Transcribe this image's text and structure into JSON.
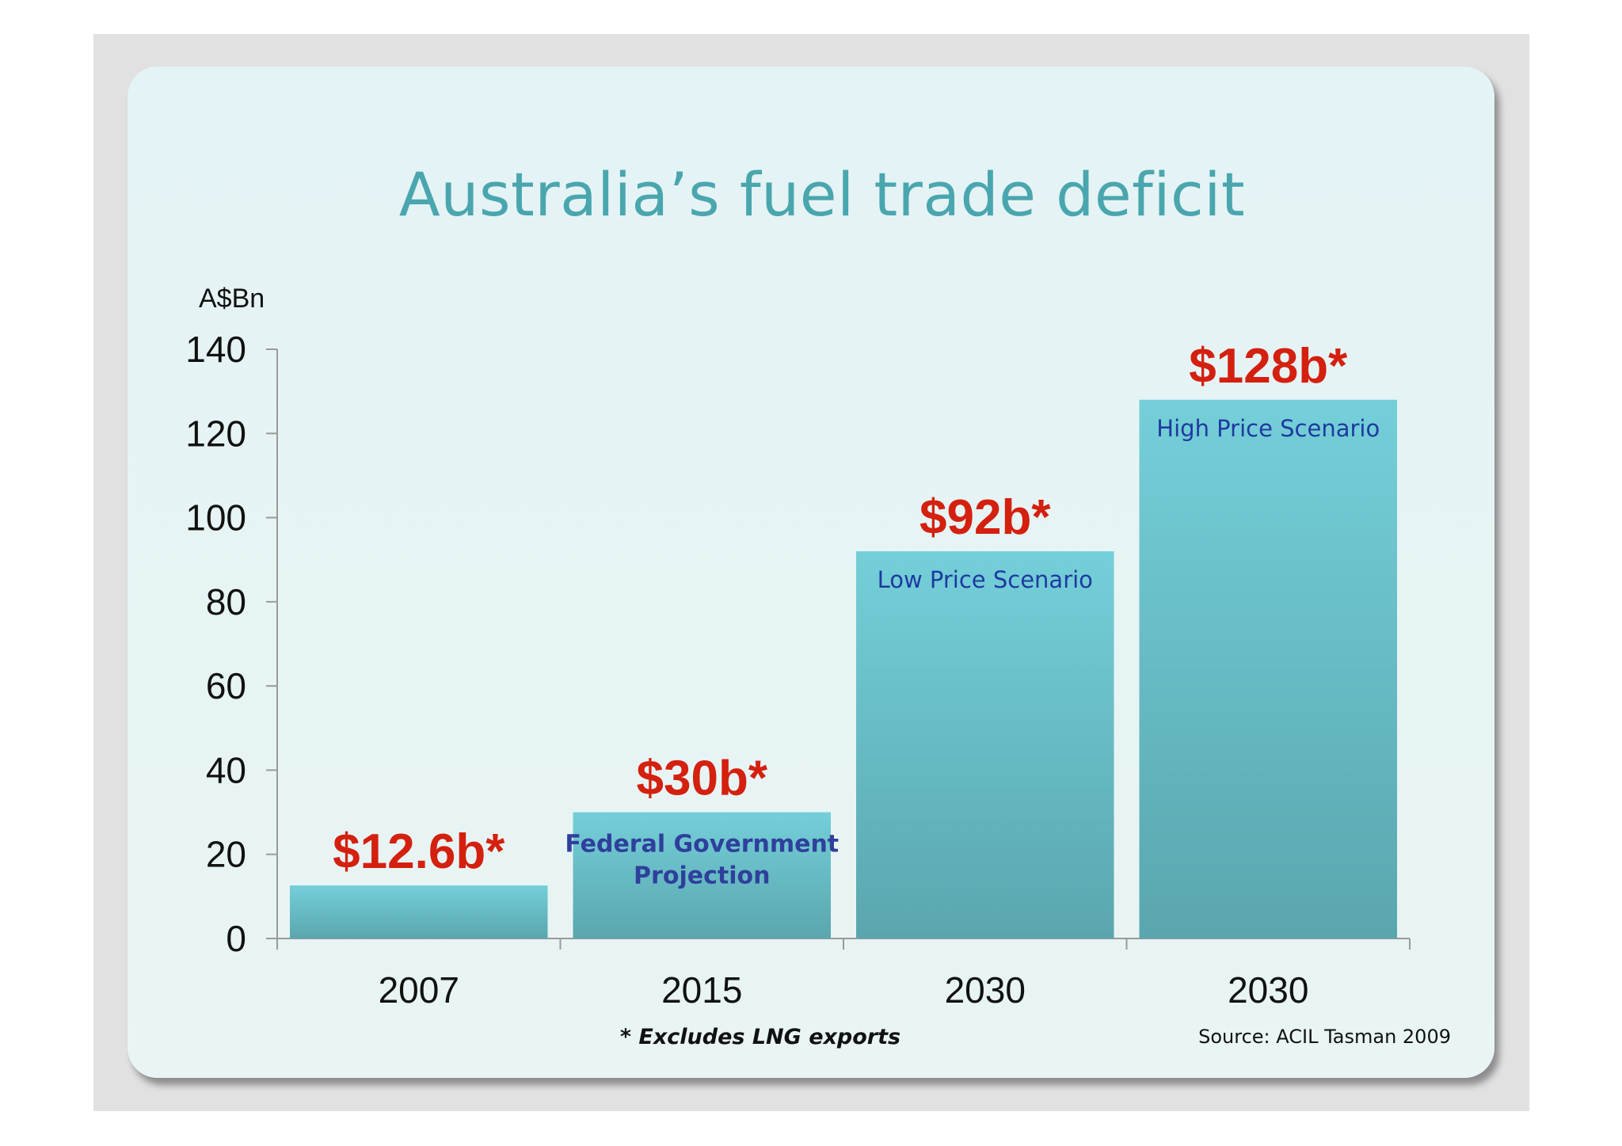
{
  "chart_data": {
    "type": "bar",
    "title": "Australia’s fuel trade deficit",
    "ylabel": "A$Bn",
    "ylim": [
      0,
      140
    ],
    "yticks": [
      0,
      20,
      40,
      60,
      80,
      100,
      120,
      140
    ],
    "categories": [
      "2007",
      "2015",
      "2030",
      "2030"
    ],
    "values": [
      12.6,
      30,
      92,
      128
    ],
    "data_labels": [
      "$12.6b*",
      "$30b*",
      "$92b*",
      "$128b*"
    ],
    "bar_annotations": [
      "",
      "Federal Government Projection",
      "Low Price Scenario",
      "High Price Scenario"
    ],
    "footnote": "* Excludes LNG exports",
    "source": "Source: ACIL Tasman 2009",
    "colors": {
      "bar_top": "#74cfd9",
      "bar_bottom": "#5aa6ae",
      "data_label": "#d4200f",
      "title": "#4aa6ae",
      "annotation": "#1e3aa0"
    },
    "grid": false,
    "legend": "none"
  }
}
